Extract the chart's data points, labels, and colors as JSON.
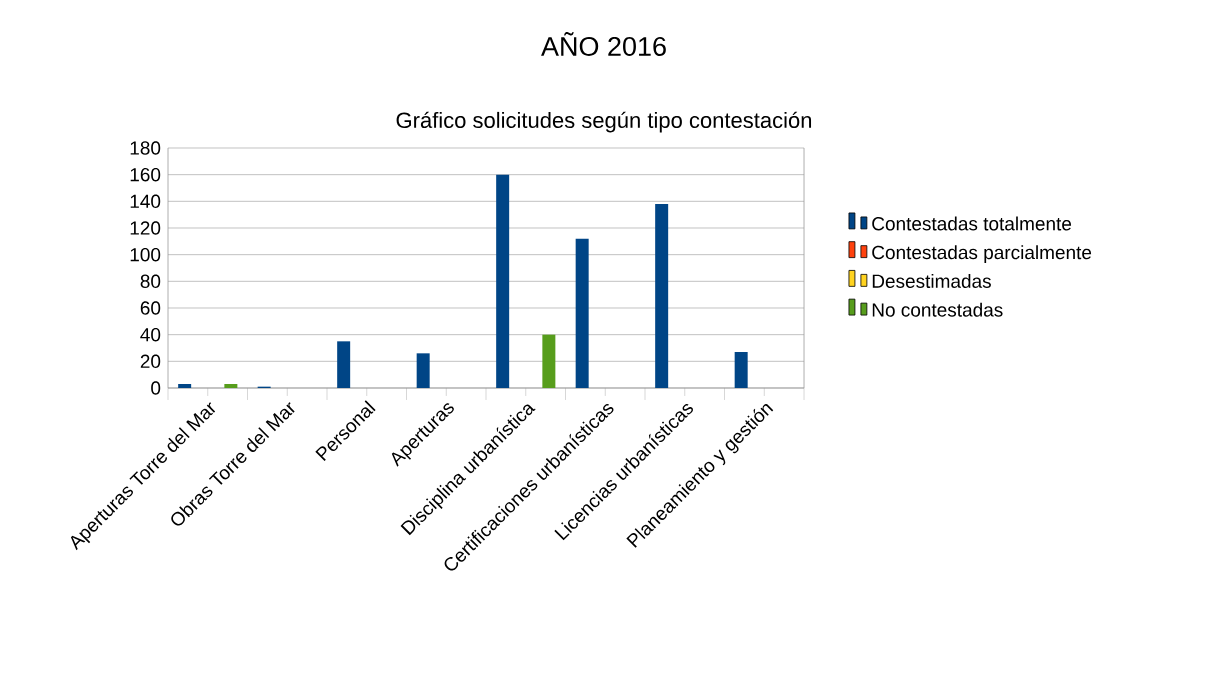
{
  "chart_data": {
    "type": "bar",
    "title": "AÑO 2016",
    "subtitle": "Gráfico solicitudes según tipo contestación",
    "categories": [
      "Aperturas Torre del Mar",
      "Obras Torre del Mar",
      "Personal",
      "Aperturas",
      "Disciplina urbanística",
      "Certificaciones urbanísticas",
      "Licencias urbanísticas",
      "Planeamiento y gestión"
    ],
    "series": [
      {
        "name": "Contestadas totalmente",
        "color": "#004586",
        "values": [
          3,
          1,
          35,
          26,
          160,
          112,
          138,
          27
        ]
      },
      {
        "name": "Contestadas parcialmente",
        "color": "#ff420e",
        "values": [
          0,
          0,
          0,
          0,
          0,
          0,
          0,
          0
        ]
      },
      {
        "name": "Desestimadas",
        "color": "#ffd320",
        "values": [
          0,
          0,
          0,
          0,
          0,
          0,
          0,
          0
        ]
      },
      {
        "name": "No contestadas",
        "color": "#579d1c",
        "values": [
          3,
          0,
          0,
          0,
          40,
          0,
          0,
          0
        ]
      }
    ],
    "ylim": [
      0,
      180
    ],
    "yticks": [
      0,
      20,
      40,
      60,
      80,
      100,
      120,
      140,
      160,
      180
    ],
    "grid": "y",
    "legend": "right"
  }
}
